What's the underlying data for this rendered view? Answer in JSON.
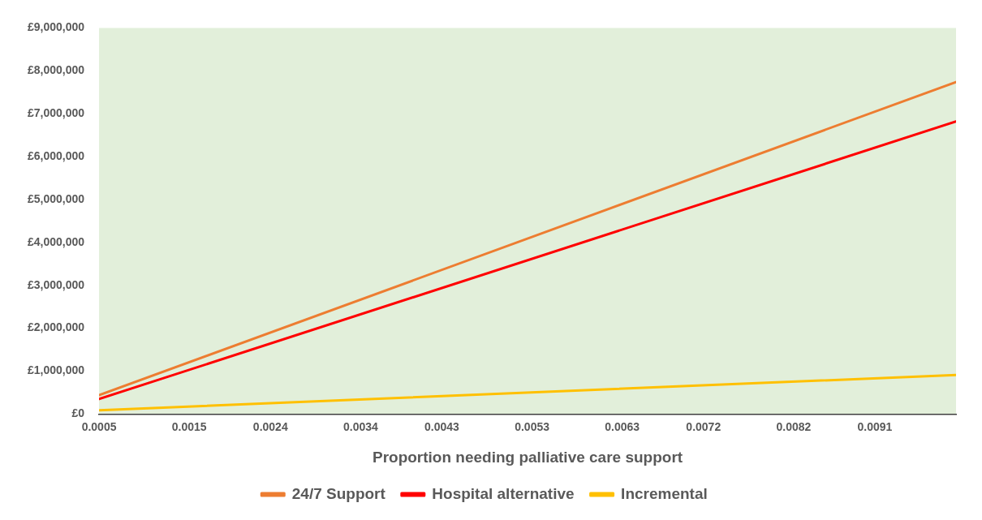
{
  "chart_data": {
    "type": "line",
    "xlabel": "Proportion needing palliative care support",
    "xlim": [
      0.0005,
      0.01
    ],
    "xticks": [
      0.0005,
      0.0015,
      0.0024,
      0.0034,
      0.0043,
      0.0053,
      0.0063,
      0.0072,
      0.0082,
      0.0091
    ],
    "ylim": [
      0,
      9000000
    ],
    "yticks": [
      {
        "value": 0,
        "label": "£0"
      },
      {
        "value": 1000000,
        "label": "£1,000,000"
      },
      {
        "value": 2000000,
        "label": "£2,000,000"
      },
      {
        "value": 3000000,
        "label": "£3,000,000"
      },
      {
        "value": 4000000,
        "label": "£4,000,000"
      },
      {
        "value": 5000000,
        "label": "£5,000,000"
      },
      {
        "value": 6000000,
        "label": "£6,000,000"
      },
      {
        "value": 7000000,
        "label": "£7,000,000"
      },
      {
        "value": 8000000,
        "label": "£8,000,000"
      },
      {
        "value": 9000000,
        "label": "£9,000,000"
      }
    ],
    "x": [
      0.0005,
      0.01
    ],
    "series": [
      {
        "name": "24/7 Support",
        "color": "#ed7d31",
        "values": [
          440000,
          7740000
        ]
      },
      {
        "name": "Hospital alternative",
        "color": "#ff0000",
        "values": [
          350000,
          6820000
        ]
      },
      {
        "name": "Incremental",
        "color": "#ffc000",
        "values": [
          90000,
          910000
        ]
      }
    ],
    "grid": false,
    "legend": "bottom",
    "marker": "none",
    "line_style": "solid"
  }
}
